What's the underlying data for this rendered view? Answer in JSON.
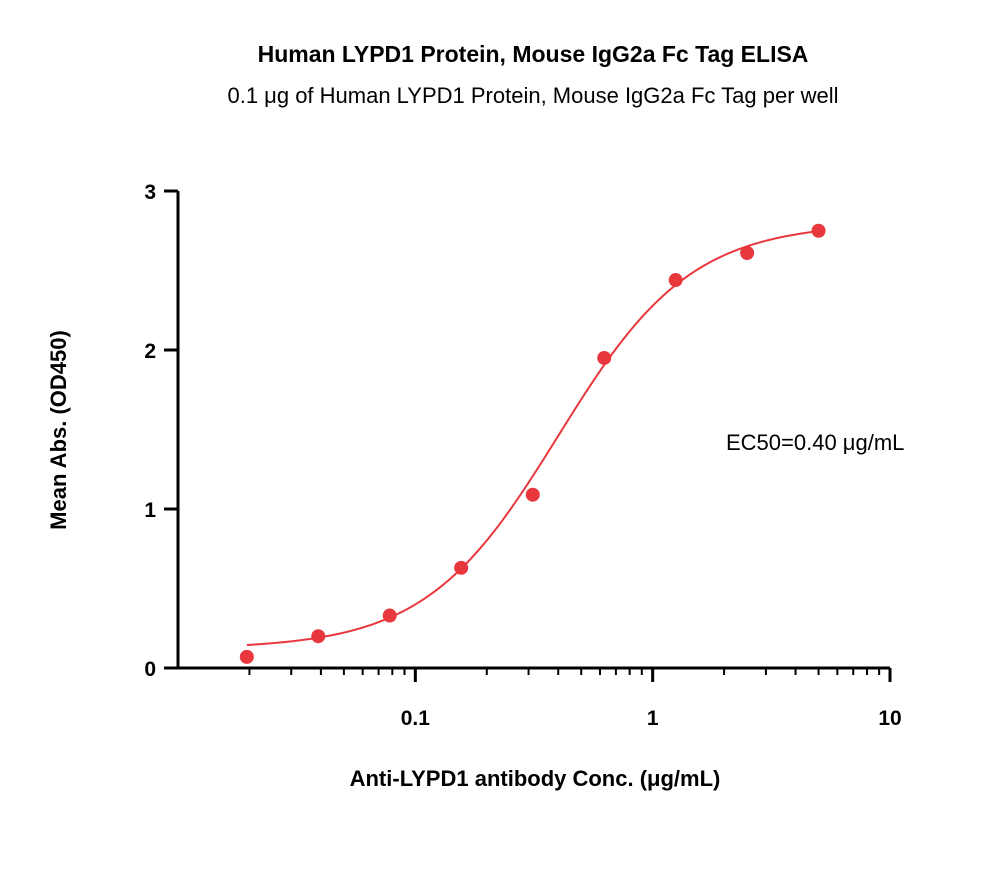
{
  "chart_data": {
    "type": "scatter",
    "title": "Human LYPD1 Protein, Mouse IgG2a Fc Tag ELISA",
    "subtitle": "0.1 μg of Human LYPD1 Protein, Mouse IgG2a Fc Tag per well",
    "xlabel": "Anti-LYPD1 antibody Conc. (μg/mL)",
    "ylabel": "Mean Abs. (OD450)",
    "x_scale": "log",
    "xlim": [
      0.01,
      10
    ],
    "ylim": [
      0,
      3
    ],
    "x_ticks": [
      {
        "value": 0.1,
        "label": "0.1"
      },
      {
        "value": 1,
        "label": "1"
      },
      {
        "value": 10,
        "label": "10"
      }
    ],
    "y_ticks": [
      {
        "value": 0,
        "label": "0"
      },
      {
        "value": 1,
        "label": "1"
      },
      {
        "value": 2,
        "label": "2"
      },
      {
        "value": 3,
        "label": "3"
      }
    ],
    "grid": false,
    "series": [
      {
        "color": "#e8383d",
        "x": [
          0.0195,
          0.039,
          0.078,
          0.156,
          0.3125,
          0.625,
          1.25,
          2.5,
          5
        ],
        "y": [
          0.07,
          0.2,
          0.33,
          0.63,
          1.09,
          1.95,
          2.44,
          2.61,
          2.75
        ]
      }
    ],
    "fit": {
      "type": "4PL",
      "bottom": 0.12,
      "top": 2.8,
      "ec50": 0.4,
      "hill": 1.55,
      "color": "#e8383d"
    },
    "annotation": "EC50=0.40 μg/mL"
  }
}
